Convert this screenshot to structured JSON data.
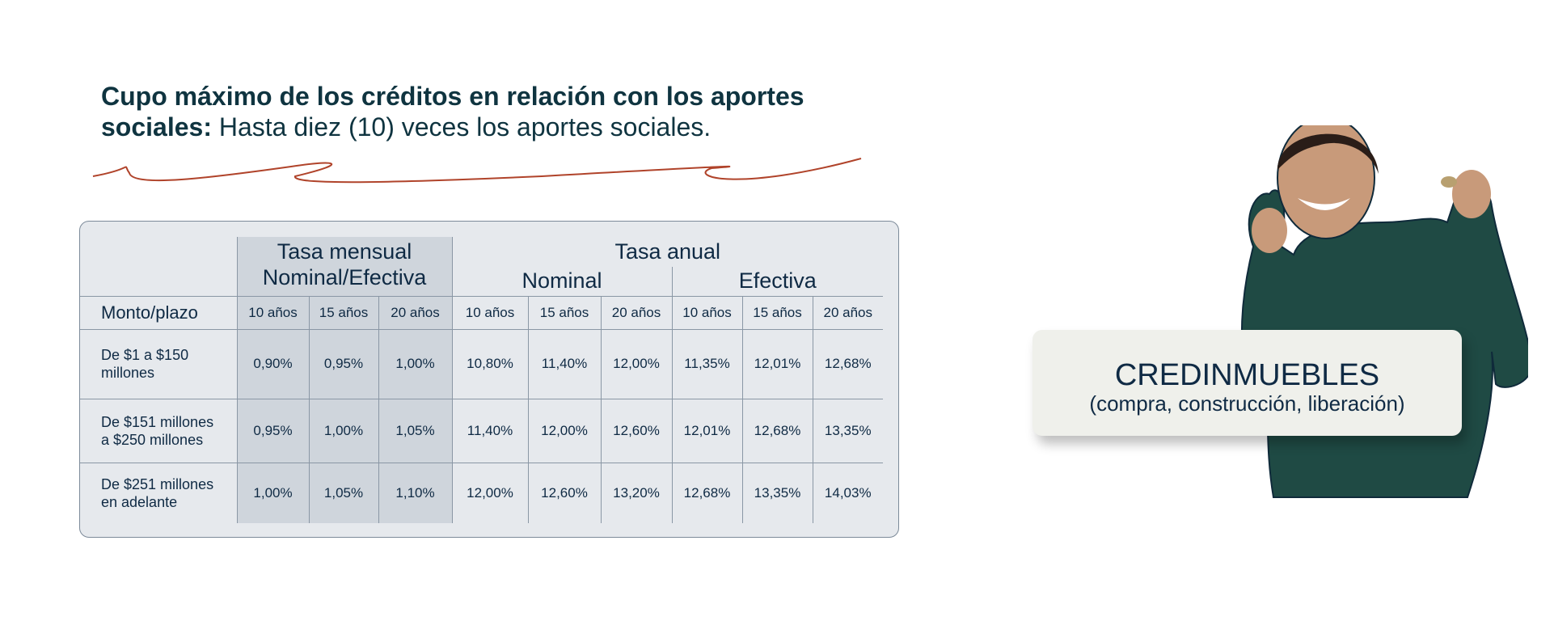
{
  "heading": {
    "bold": "Cupo máximo de los créditos en relación con los aportes sociales:",
    "regular": " Hasta diez (10) veces los aportes sociales."
  },
  "colors": {
    "text": "#0f3440",
    "accent_line": "#b0432a",
    "table_bg": "#e6e9ed",
    "shade": "#cfd5dc",
    "sweater": "#1f4a44"
  },
  "table": {
    "group_mensual": [
      "Tasa mensual",
      "Nominal/Efectiva"
    ],
    "group_anual": "Tasa anual",
    "sub_nominal": "Nominal",
    "sub_efectiva": "Efectiva",
    "row_header": "Monto/plazo",
    "terms": [
      "10 años",
      "15 años",
      "20 años",
      "10 años",
      "15 años",
      "20 años",
      "10 años",
      "15 años",
      "20 años"
    ],
    "rows": [
      {
        "label": [
          "De $1 a $150",
          "millones"
        ],
        "values": [
          "0,90%",
          "0,95%",
          "1,00%",
          "10,80%",
          "11,40%",
          "12,00%",
          "11,35%",
          "12,01%",
          "12,68%"
        ]
      },
      {
        "label": [
          "De $151 millones",
          "a $250 millones"
        ],
        "values": [
          "0,95%",
          "1,00%",
          "1,05%",
          "11,40%",
          "12,00%",
          "12,60%",
          "12,01%",
          "12,68%",
          "13,35%"
        ]
      },
      {
        "label": [
          "De $251 millones",
          "en adelante"
        ],
        "values": [
          "1,00%",
          "1,05%",
          "1,10%",
          "12,00%",
          "12,60%",
          "13,20%",
          "12,68%",
          "13,35%",
          "14,03%"
        ]
      }
    ]
  },
  "badge": {
    "title": "CREDINMUEBLES",
    "subtitle": "(compra, construcción, liberación)"
  }
}
